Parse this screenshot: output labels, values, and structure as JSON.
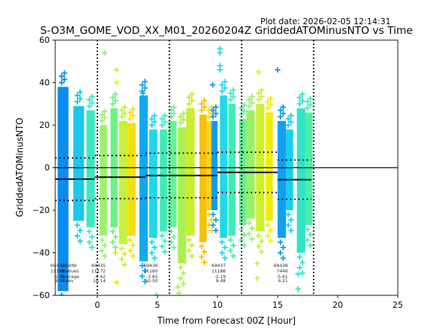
{
  "plot_date": "Plot date: 2026-02-05 12:14:31",
  "chart_data": {
    "type": "scatter",
    "title": "S-O3M_GOME_VOD_XX_M01_20260204Z GriddedATOMinusNTO vs Time",
    "xlabel": "Time from Forecast 00Z [Hour]",
    "ylabel": "GriddedATOMinusNTO",
    "xlim": [
      -3.5,
      25
    ],
    "ylim": [
      -60,
      60
    ],
    "xticks": [
      0,
      5,
      10,
      15,
      20,
      25
    ],
    "yticks": [
      -60,
      -40,
      -20,
      0,
      20,
      40,
      60
    ],
    "zero_line": 0,
    "vertical_dotted_lines": [
      0,
      6,
      12,
      18
    ],
    "stats_labels": [
      "OrbitNr",
      "NValues",
      "Average",
      "Stdev"
    ],
    "orbits": [
      {
        "orbit": "69434",
        "nvalues": "11188",
        "average": "-5.38",
        "stdev": "9.97",
        "x_start": -3.5,
        "x_end": -0.2,
        "avg_val": -5.38,
        "std_val": 9.97
      },
      {
        "orbit": "69435",
        "nvalues": "11172",
        "average": "-4.42",
        "stdev": "10.14",
        "x_start": -0.2,
        "x_end": 4.0,
        "avg_val": -4.42,
        "std_val": 10.14
      },
      {
        "orbit": "69436",
        "nvalues": "11160",
        "average": "-3.65",
        "stdev": "10.50",
        "x_start": 4.0,
        "x_end": 10.0,
        "avg_val": -3.65,
        "std_val": 10.5
      },
      {
        "orbit": "69437",
        "nvalues": "11188",
        "average": "-2.19",
        "stdev": "9.48",
        "x_start": 10.0,
        "x_end": 15.0,
        "avg_val": -2.19,
        "std_val": 9.48
      },
      {
        "orbit": "69438",
        "nvalues": "7446",
        "average": "-5.61",
        "stdev": "9.21",
        "x_start": 15.0,
        "x_end": 17.8,
        "avg_val": -5.61,
        "std_val": 9.21
      }
    ],
    "stripes": [
      {
        "x": -3.3,
        "w": 0.9,
        "top": 38,
        "bottom": -58,
        "color": "#0a8cf0"
      },
      {
        "x": -2.0,
        "w": 0.9,
        "top": 29,
        "bottom": -25,
        "color": "#1ec8e8"
      },
      {
        "x": -0.9,
        "w": 0.7,
        "top": 27,
        "bottom": -28,
        "color": "#3ce8c0"
      },
      {
        "x": 0.2,
        "w": 0.6,
        "top": 20,
        "bottom": -32,
        "color": "#9cf26a"
      },
      {
        "x": 1.1,
        "w": 0.6,
        "top": 28,
        "bottom": -28,
        "color": "#6ef088"
      },
      {
        "x": 1.8,
        "w": 0.7,
        "top": 22,
        "bottom": -36,
        "color": "#c8f03c"
      },
      {
        "x": 2.5,
        "w": 0.7,
        "top": 21,
        "bottom": -32,
        "color": "#f2e010"
      },
      {
        "x": 3.5,
        "w": 0.7,
        "top": 34,
        "bottom": -44,
        "color": "#10a8f0"
      },
      {
        "x": 4.3,
        "w": 0.7,
        "top": 18,
        "bottom": -33,
        "color": "#20d8e8"
      },
      {
        "x": 5.2,
        "w": 0.6,
        "top": 18,
        "bottom": -30,
        "color": "#3cecb8"
      },
      {
        "x": 5.9,
        "w": 0.7,
        "top": 22,
        "bottom": -28,
        "color": "#66f296"
      },
      {
        "x": 6.7,
        "w": 0.7,
        "top": 19,
        "bottom": -45,
        "color": "#aaf050"
      },
      {
        "x": 7.4,
        "w": 0.7,
        "top": 28,
        "bottom": -32,
        "color": "#c8ee2c"
      },
      {
        "x": 8.5,
        "w": 0.6,
        "top": 25,
        "bottom": -35,
        "color": "#f8c000"
      },
      {
        "x": 9.1,
        "w": 0.6,
        "top": 22,
        "bottom": -20,
        "color": "#ffd21c"
      },
      {
        "x": 9.5,
        "w": 0.5,
        "top": 22,
        "bottom": -20,
        "color": "#0e9cf2"
      },
      {
        "x": 10.2,
        "w": 0.6,
        "top": 34,
        "bottom": -33,
        "color": "#20d8e8"
      },
      {
        "x": 10.9,
        "w": 0.6,
        "top": 30,
        "bottom": -32,
        "color": "#40ecb6"
      },
      {
        "x": 11.8,
        "w": 0.6,
        "top": 23,
        "bottom": -27,
        "color": "#66f096"
      },
      {
        "x": 12.4,
        "w": 0.7,
        "top": 27,
        "bottom": -24,
        "color": "#9cf068"
      },
      {
        "x": 13.2,
        "w": 0.7,
        "top": 30,
        "bottom": -30,
        "color": "#ccf030"
      },
      {
        "x": 14.0,
        "w": 0.6,
        "top": 26,
        "bottom": -25,
        "color": "#f6ea08"
      },
      {
        "x": 15.0,
        "w": 0.7,
        "top": 22,
        "bottom": -33,
        "color": "#10a0f0"
      },
      {
        "x": 15.7,
        "w": 0.6,
        "top": 18,
        "bottom": -20,
        "color": "#18d0ec"
      },
      {
        "x": 16.6,
        "w": 0.7,
        "top": 28,
        "bottom": -40,
        "color": "#30e4c8"
      },
      {
        "x": 17.3,
        "w": 0.6,
        "top": 26,
        "bottom": -27,
        "color": "#50ecaa"
      }
    ],
    "outliers": [
      {
        "x": 0.6,
        "y": 54,
        "color": "#8cf070"
      },
      {
        "x": 1.6,
        "y": 46,
        "color": "#c8f03c"
      },
      {
        "x": 1.6,
        "y": 40,
        "color": "#c8f03c"
      },
      {
        "x": -2.9,
        "y": 35,
        "color": "#0a8cf0"
      },
      {
        "x": 3.8,
        "y": 35,
        "color": "#10a8f0"
      },
      {
        "x": 9.6,
        "y": 39,
        "color": "#0e9cf2"
      },
      {
        "x": 10.2,
        "y": 56,
        "color": "#20e0e0"
      },
      {
        "x": 10.2,
        "y": 54,
        "color": "#20e0e0"
      },
      {
        "x": 10.2,
        "y": 48,
        "color": "#20e0e0"
      },
      {
        "x": 10.2,
        "y": 46,
        "color": "#20e0e0"
      },
      {
        "x": 13.4,
        "y": 45,
        "color": "#ccf030"
      },
      {
        "x": 15.0,
        "y": 46,
        "color": "#10a0f0"
      },
      {
        "x": 1.5,
        "y": -40,
        "color": "#c8f03c"
      },
      {
        "x": 1.6,
        "y": -54,
        "color": "#c8f03c"
      },
      {
        "x": 6.7,
        "y": -56,
        "color": "#aaf050"
      },
      {
        "x": 6.8,
        "y": -59,
        "color": "#aaf050"
      },
      {
        "x": 13.3,
        "y": -45,
        "color": "#ccf030"
      },
      {
        "x": 13.3,
        "y": -52,
        "color": "#ccf030"
      },
      {
        "x": 16.7,
        "y": -50,
        "color": "#30e4c8"
      },
      {
        "x": 16.7,
        "y": -57,
        "color": "#30e4c8"
      },
      {
        "x": 4.9,
        "y": -60,
        "color": "#3cecb8"
      }
    ]
  }
}
